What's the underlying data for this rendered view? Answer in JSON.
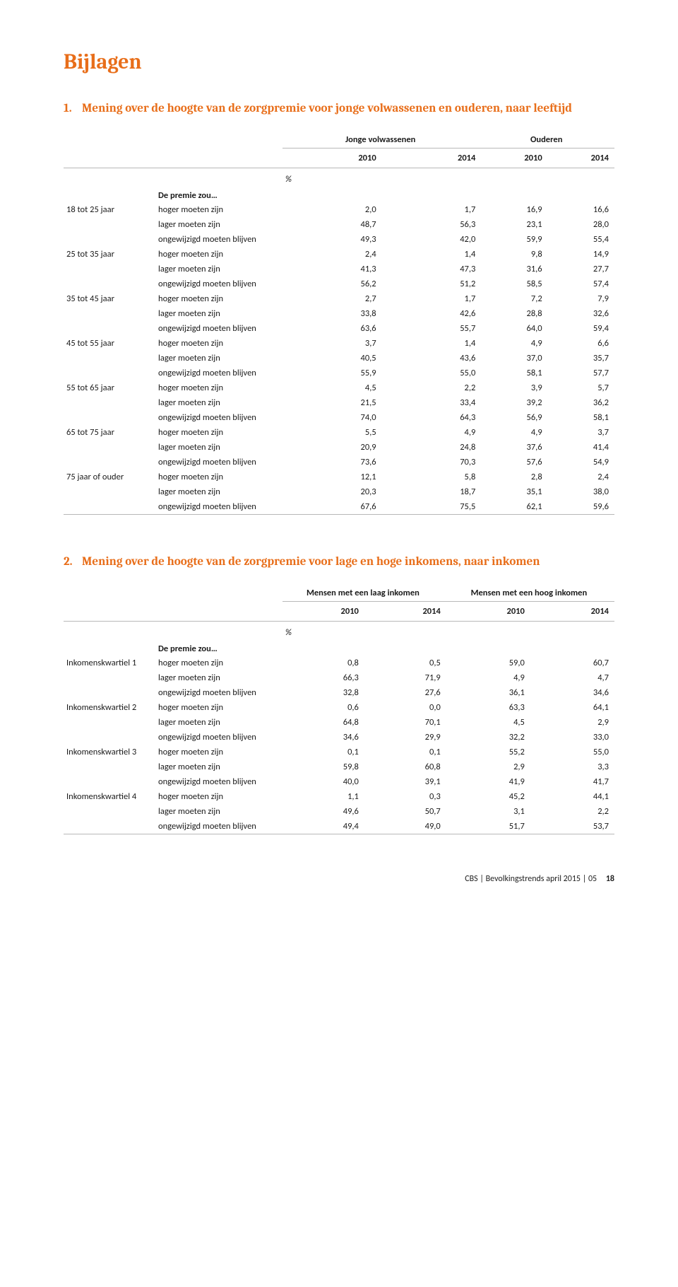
{
  "doc_title": "Bijlagen",
  "section1": {
    "number": "1.",
    "title": "Mening over de hoogte van de zorgpremie voor jonge volwassenen en ouderen, naar leeftijd",
    "group_headers": [
      "Jonge volwassenen",
      "Ouderen"
    ],
    "year_headers": [
      "2010",
      "2014",
      "2010",
      "2014"
    ],
    "percent_symbol": "%",
    "subheader": "De premie zou…",
    "row_groups": [
      {
        "label": "18 tot 25 jaar",
        "rows": [
          {
            "sub": "hoger moeten zijn",
            "vals": [
              "2,0",
              "1,7",
              "16,9",
              "16,6"
            ]
          },
          {
            "sub": "lager moeten zijn",
            "vals": [
              "48,7",
              "56,3",
              "23,1",
              "28,0"
            ]
          },
          {
            "sub": "ongewijzigd moeten blijven",
            "vals": [
              "49,3",
              "42,0",
              "59,9",
              "55,4"
            ]
          }
        ]
      },
      {
        "label": "25 tot 35 jaar",
        "rows": [
          {
            "sub": "hoger moeten zijn",
            "vals": [
              "2,4",
              "1,4",
              "9,8",
              "14,9"
            ]
          },
          {
            "sub": "lager moeten zijn",
            "vals": [
              "41,3",
              "47,3",
              "31,6",
              "27,7"
            ]
          },
          {
            "sub": "ongewijzigd moeten blijven",
            "vals": [
              "56,2",
              "51,2",
              "58,5",
              "57,4"
            ]
          }
        ]
      },
      {
        "label": "35 tot 45 jaar",
        "rows": [
          {
            "sub": "hoger moeten zijn",
            "vals": [
              "2,7",
              "1,7",
              "7,2",
              "7,9"
            ]
          },
          {
            "sub": "lager moeten zijn",
            "vals": [
              "33,8",
              "42,6",
              "28,8",
              "32,6"
            ]
          },
          {
            "sub": "ongewijzigd moeten blijven",
            "vals": [
              "63,6",
              "55,7",
              "64,0",
              "59,4"
            ]
          }
        ]
      },
      {
        "label": "45 tot 55 jaar",
        "rows": [
          {
            "sub": "hoger moeten zijn",
            "vals": [
              "3,7",
              "1,4",
              "4,9",
              "6,6"
            ]
          },
          {
            "sub": "lager moeten zijn",
            "vals": [
              "40,5",
              "43,6",
              "37,0",
              "35,7"
            ]
          },
          {
            "sub": "ongewijzigd moeten blijven",
            "vals": [
              "55,9",
              "55,0",
              "58,1",
              "57,7"
            ]
          }
        ]
      },
      {
        "label": "55 tot 65 jaar",
        "rows": [
          {
            "sub": "hoger moeten zijn",
            "vals": [
              "4,5",
              "2,2",
              "3,9",
              "5,7"
            ]
          },
          {
            "sub": "lager moeten zijn",
            "vals": [
              "21,5",
              "33,4",
              "39,2",
              "36,2"
            ]
          },
          {
            "sub": "ongewijzigd moeten blijven",
            "vals": [
              "74,0",
              "64,3",
              "56,9",
              "58,1"
            ]
          }
        ]
      },
      {
        "label": "65 tot 75 jaar",
        "rows": [
          {
            "sub": "hoger moeten zijn",
            "vals": [
              "5,5",
              "4,9",
              "4,9",
              "3,7"
            ]
          },
          {
            "sub": "lager moeten zijn",
            "vals": [
              "20,9",
              "24,8",
              "37,6",
              "41,4"
            ]
          },
          {
            "sub": "ongewijzigd moeten blijven",
            "vals": [
              "73,6",
              "70,3",
              "57,6",
              "54,9"
            ]
          }
        ]
      },
      {
        "label": "75 jaar of ouder",
        "rows": [
          {
            "sub": "hoger moeten zijn",
            "vals": [
              "12,1",
              "5,8",
              "2,8",
              "2,4"
            ]
          },
          {
            "sub": "lager moeten zijn",
            "vals": [
              "20,3",
              "18,7",
              "35,1",
              "38,0"
            ]
          },
          {
            "sub": "ongewijzigd moeten blijven",
            "vals": [
              "67,6",
              "75,5",
              "62,1",
              "59,6"
            ]
          }
        ]
      }
    ]
  },
  "section2": {
    "number": "2.",
    "title": "Mening over de hoogte van de zorgpremie voor lage en hoge inkomens, naar inkomen",
    "group_headers": [
      "Mensen met een laag inkomen",
      "Mensen met een hoog inkomen"
    ],
    "year_headers": [
      "2010",
      "2014",
      "2010",
      "2014"
    ],
    "percent_symbol": "%",
    "subheader": "De premie zou…",
    "row_groups": [
      {
        "label": "Inkomenskwartiel 1",
        "rows": [
          {
            "sub": "hoger moeten zijn",
            "vals": [
              "0,8",
              "0,5",
              "59,0",
              "60,7"
            ]
          },
          {
            "sub": "lager moeten zijn",
            "vals": [
              "66,3",
              "71,9",
              "4,9",
              "4,7"
            ]
          },
          {
            "sub": "ongewijzigd moeten blijven",
            "vals": [
              "32,8",
              "27,6",
              "36,1",
              "34,6"
            ]
          }
        ]
      },
      {
        "label": "Inkomenskwartiel 2",
        "rows": [
          {
            "sub": "hoger moeten zijn",
            "vals": [
              "0,6",
              "0,0",
              "63,3",
              "64,1"
            ]
          },
          {
            "sub": "lager moeten zijn",
            "vals": [
              "64,8",
              "70,1",
              "4,5",
              "2,9"
            ]
          },
          {
            "sub": "ongewijzigd moeten blijven",
            "vals": [
              "34,6",
              "29,9",
              "32,2",
              "33,0"
            ]
          }
        ]
      },
      {
        "label": "Inkomenskwartiel 3",
        "rows": [
          {
            "sub": "hoger moeten zijn",
            "vals": [
              "0,1",
              "0,1",
              "55,2",
              "55,0"
            ]
          },
          {
            "sub": "lager moeten zijn",
            "vals": [
              "59,8",
              "60,8",
              "2,9",
              "3,3"
            ]
          },
          {
            "sub": "ongewijzigd moeten blijven",
            "vals": [
              "40,0",
              "39,1",
              "41,9",
              "41,7"
            ]
          }
        ]
      },
      {
        "label": "Inkomenskwartiel 4",
        "rows": [
          {
            "sub": "hoger moeten zijn",
            "vals": [
              "1,1",
              "0,3",
              "45,2",
              "44,1"
            ]
          },
          {
            "sub": "lager moeten zijn",
            "vals": [
              "49,6",
              "50,7",
              "3,1",
              "2,2"
            ]
          },
          {
            "sub": "ongewijzigd moeten blijven",
            "vals": [
              "49,4",
              "49,0",
              "51,7",
              "53,7"
            ]
          }
        ]
      }
    ]
  },
  "footer": {
    "text": "CBS | Bevolkingstrends april 2015 | 05",
    "page": "18"
  },
  "colors": {
    "accent": "#e86e1a",
    "rule": "#b8b8b8",
    "text": "#1a1a1a",
    "background": "#ffffff"
  },
  "fonts": {
    "heading_family": "Cambria, Georgia, serif",
    "body_family": "Calibri, Arial, sans-serif",
    "heading_size_pt": 22,
    "section_title_size_pt": 13,
    "table_size_pt": 9.5,
    "footer_size_pt": 9
  }
}
